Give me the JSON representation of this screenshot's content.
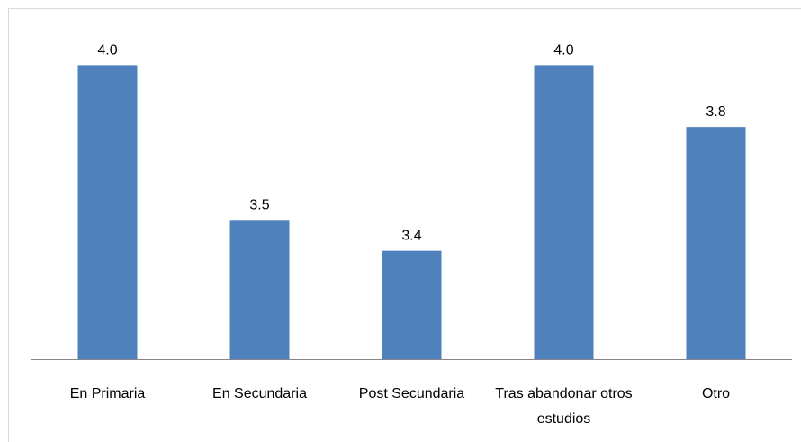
{
  "chart_data": {
    "type": "bar",
    "categories": [
      "En Primaria",
      "En Secundaria",
      "Post Secundaria",
      "Tras abandonar otros estudios",
      "Otro"
    ],
    "values": [
      4.0,
      3.5,
      3.4,
      4.0,
      3.8
    ],
    "value_labels": [
      "4.0",
      "3.5",
      "3.4",
      "4.0",
      "3.8"
    ],
    "color": "#4f81bd",
    "ylim": [
      3.05,
      4.1
    ]
  }
}
